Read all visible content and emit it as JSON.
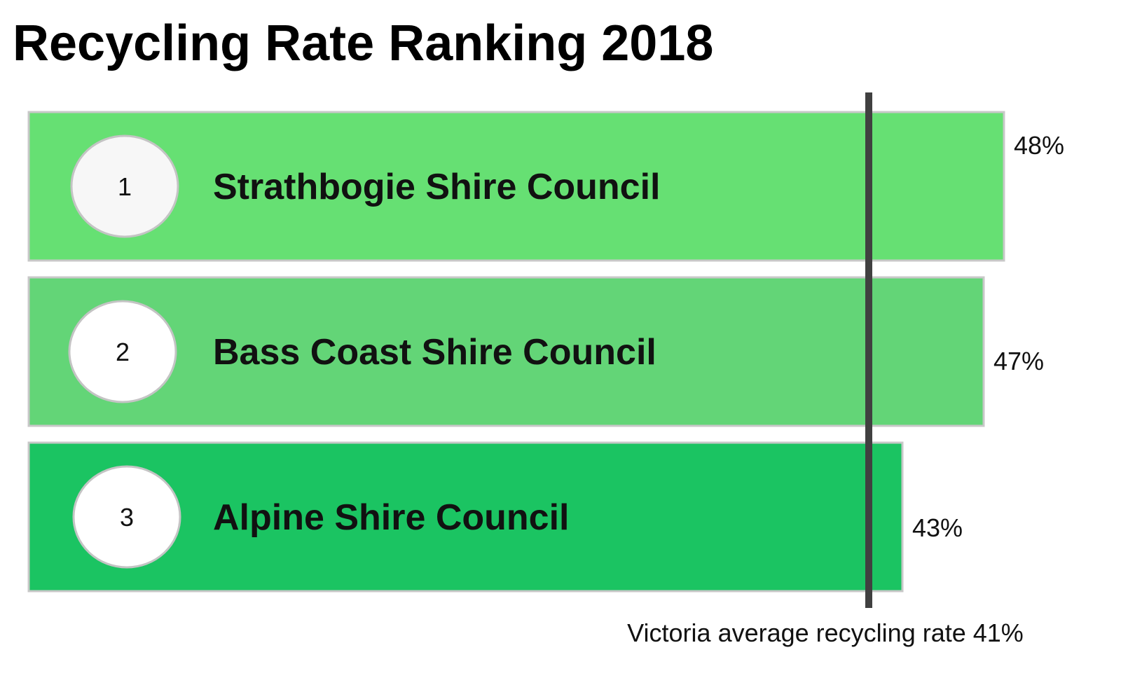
{
  "chart_data": {
    "type": "bar",
    "orientation": "horizontal",
    "title": "Recycling Rate Ranking 2018",
    "categories": [
      "Strathbogie Shire Council",
      "Bass Coast Shire Council",
      "Alpine Shire Council"
    ],
    "ranks": [
      "1",
      "2",
      "3"
    ],
    "values": [
      48,
      47,
      43
    ],
    "value_labels": [
      "48%",
      "47%",
      "43%"
    ],
    "unit": "%",
    "colors": [
      "#66e073",
      "#63d577",
      "#1bc462"
    ],
    "reference_line": {
      "value": 41,
      "label": "Victoria average recycling rate 41%",
      "color": "#404040"
    },
    "grid": false,
    "legend": "none"
  }
}
